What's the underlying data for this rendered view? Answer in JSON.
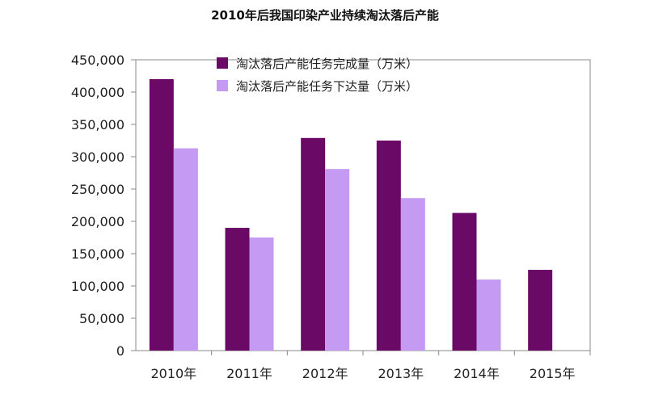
{
  "chart_data": {
    "type": "bar",
    "title": "2010年后我国印染产业持续淘汰落后产能",
    "categories": [
      "2010年",
      "2011年",
      "2012年",
      "2013年",
      "2014年",
      "2015年"
    ],
    "series": [
      {
        "name": "淘汰落后产能任务完成量（万米）",
        "color": "#6b0a66",
        "values": [
          420000,
          190000,
          329000,
          325000,
          213000,
          125000
        ]
      },
      {
        "name": "淘汰落后产能任务下达量（万米）",
        "color": "#c59af2",
        "values": [
          313000,
          175000,
          281000,
          236000,
          110000,
          null
        ]
      }
    ],
    "y_ticks": [
      "0",
      "50,000",
      "100,000",
      "150,000",
      "200,000",
      "250,000",
      "300,000",
      "350,000",
      "400,000",
      "450,000"
    ],
    "ylim": [
      0,
      450000
    ],
    "legend_position": "top-center",
    "grid": false
  }
}
